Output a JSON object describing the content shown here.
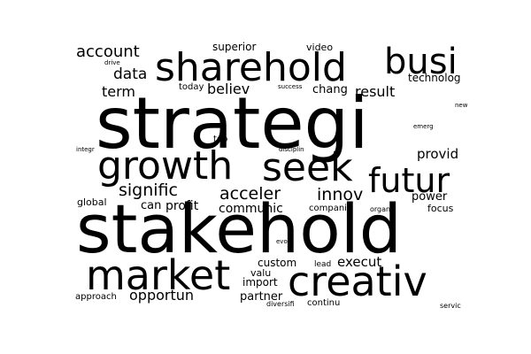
{
  "text_color": "#000000",
  "background_color": "#ffffff",
  "words": [
    "stakehold",
    "strategi",
    "creativ",
    "market",
    "growth",
    "seek",
    "sharehold",
    "busi",
    "futur",
    "signific",
    "acceler",
    "innov",
    "account",
    "data",
    "term",
    "believ",
    "result",
    "chang",
    "superior",
    "video",
    "technolog",
    "today",
    "success",
    "provid",
    "emerg",
    "new",
    "drive",
    "integr",
    "top",
    "disciplin",
    "global",
    "can",
    "profit",
    "communic",
    "compani",
    "organ",
    "power",
    "focus",
    "evolv",
    "custom",
    "lead",
    "execut",
    "valu",
    "import",
    "opportun",
    "partner",
    "approach",
    "diversifi",
    "continu",
    "servic"
  ]
}
